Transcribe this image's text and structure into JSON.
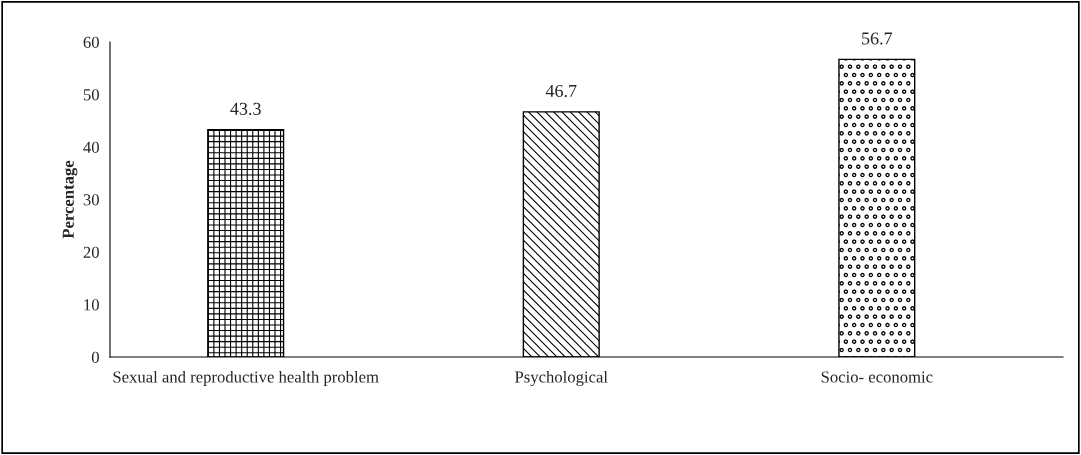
{
  "chart_data": {
    "type": "bar",
    "ylabel": "Percentage",
    "categories": [
      "Sexual and reproductive health problem",
      "Psychological",
      "Socio- economic"
    ],
    "values": [
      43.3,
      46.7,
      56.7
    ],
    "ylim": [
      0,
      60
    ],
    "yticks": [
      0,
      10,
      20,
      30,
      40,
      50,
      60
    ],
    "grid": false,
    "data_labels": true
  }
}
